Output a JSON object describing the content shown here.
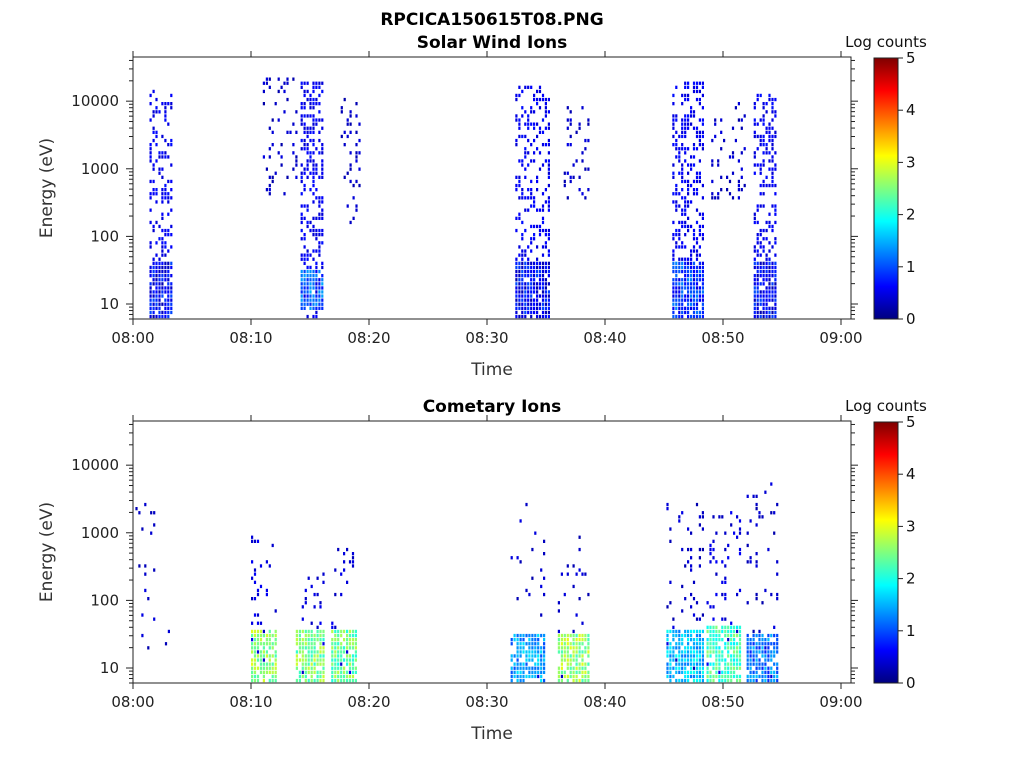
{
  "figure_title": "RPCICA150615T08.PNG",
  "colorbar": {
    "label": "Log counts",
    "ticks": [
      "0",
      "1",
      "2",
      "3",
      "4",
      "5"
    ],
    "colors": [
      "#00007f",
      "#0000ff",
      "#007fff",
      "#00ffff",
      "#7fff7f",
      "#ffff00",
      "#ff7f00",
      "#ff0000",
      "#7f0000"
    ]
  },
  "chart_data": [
    {
      "type": "heatmap",
      "title": "Solar Wind Ions",
      "xlabel": "Time",
      "ylabel": "Energy (eV)",
      "x_ticks": [
        "08:00",
        "08:10",
        "08:20",
        "08:30",
        "08:40",
        "08:50",
        "09:00"
      ],
      "y_ticks": [
        "10",
        "100",
        "1000",
        "10000"
      ],
      "y_scale": "log",
      "ylim": [
        6,
        45000
      ],
      "xlim_minutes": [
        0,
        60
      ],
      "clim": [
        0,
        5
      ],
      "bursts": [
        {
          "t": [
            1.4,
            3.3
          ],
          "e": [
            6,
            13000
          ],
          "v": 0.4,
          "dense": 0.35,
          "low": [
            6,
            40
          ],
          "lowv": 0.6
        },
        {
          "t": [
            11.0,
            13.8
          ],
          "e": [
            400,
            22000
          ],
          "v": 0.2,
          "dense": 0.12
        },
        {
          "t": [
            14.2,
            16.0
          ],
          "e": [
            6,
            17000
          ],
          "v": 0.4,
          "dense": 0.45,
          "low": [
            8,
            30
          ],
          "lowv": 1.1
        },
        {
          "t": [
            17.6,
            19.2
          ],
          "e": [
            150,
            11000
          ],
          "v": 0.2,
          "dense": 0.18
        },
        {
          "t": [
            32.4,
            35.3
          ],
          "e": [
            6,
            15000
          ],
          "v": 0.4,
          "dense": 0.38,
          "low": [
            6,
            40
          ],
          "lowv": 0.6
        },
        {
          "t": [
            36.5,
            38.6
          ],
          "e": [
            300,
            9000
          ],
          "v": 0.2,
          "dense": 0.16
        },
        {
          "t": [
            45.7,
            48.4
          ],
          "e": [
            6,
            17000
          ],
          "v": 0.4,
          "dense": 0.4,
          "low": [
            6,
            40
          ],
          "lowv": 0.9
        },
        {
          "t": [
            49.0,
            51.8
          ],
          "e": [
            300,
            9000
          ],
          "v": 0.2,
          "dense": 0.12
        },
        {
          "t": [
            52.6,
            54.6
          ],
          "e": [
            6,
            12000
          ],
          "v": 0.4,
          "dense": 0.42,
          "low": [
            6,
            40
          ],
          "lowv": 0.6
        }
      ]
    },
    {
      "type": "heatmap",
      "title": "Cometary Ions",
      "xlabel": "Time",
      "ylabel": "Energy (eV)",
      "x_ticks": [
        "08:00",
        "08:10",
        "08:20",
        "08:30",
        "08:40",
        "08:50",
        "09:00"
      ],
      "y_ticks": [
        "10",
        "100",
        "1000",
        "10000"
      ],
      "y_scale": "log",
      "ylim": [
        6,
        45000
      ],
      "xlim_minutes": [
        0,
        60
      ],
      "clim": [
        0,
        5
      ],
      "bursts": [
        {
          "t": [
            0.2,
            3.2
          ],
          "e": [
            20,
            2500
          ],
          "v": 0.2,
          "dense": 0.05
        },
        {
          "t": [
            10.0,
            12.2
          ],
          "e": [
            6,
            800
          ],
          "v": 0.3,
          "dense": 0.1,
          "low": [
            6,
            35
          ],
          "lowv": 2.6
        },
        {
          "t": [
            13.8,
            16.2
          ],
          "e": [
            6,
            250
          ],
          "v": 0.3,
          "dense": 0.12,
          "low": [
            6,
            35
          ],
          "lowv": 2.5
        },
        {
          "t": [
            16.8,
            19.0
          ],
          "e": [
            6,
            600
          ],
          "v": 0.3,
          "dense": 0.12,
          "low": [
            6,
            35
          ],
          "lowv": 2.4
        },
        {
          "t": [
            32.0,
            35.0
          ],
          "e": [
            6,
            2500
          ],
          "v": 0.2,
          "dense": 0.06,
          "low": [
            6,
            30
          ],
          "lowv": 1.4
        },
        {
          "t": [
            36.0,
            38.6
          ],
          "e": [
            6,
            900
          ],
          "v": 0.2,
          "dense": 0.08,
          "low": [
            6,
            30
          ],
          "lowv": 2.6
        },
        {
          "t": [
            45.2,
            48.4
          ],
          "e": [
            6,
            2600
          ],
          "v": 0.2,
          "dense": 0.1,
          "low": [
            6,
            35
          ],
          "lowv": 1.6
        },
        {
          "t": [
            48.6,
            51.6
          ],
          "e": [
            6,
            2000
          ],
          "v": 0.3,
          "dense": 0.14,
          "low": [
            6,
            40
          ],
          "lowv": 2.2
        },
        {
          "t": [
            52.0,
            54.6
          ],
          "e": [
            6,
            5000
          ],
          "v": 0.2,
          "dense": 0.08,
          "low": [
            6,
            30
          ],
          "lowv": 1.2
        }
      ]
    }
  ]
}
